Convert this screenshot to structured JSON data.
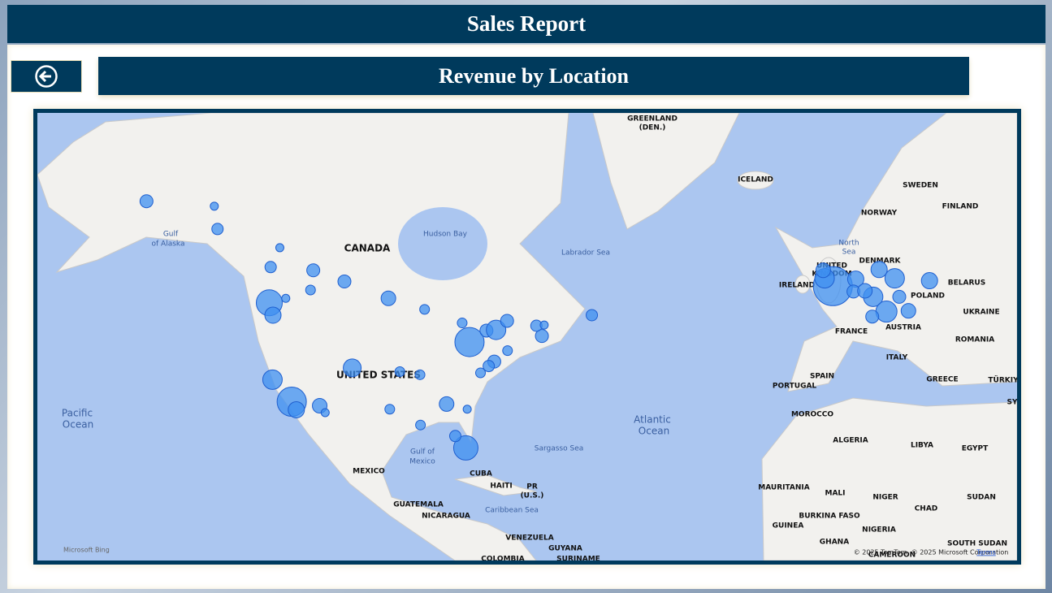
{
  "header": {
    "title": "Sales Report"
  },
  "visual": {
    "title": "Revenue by Location"
  },
  "map": {
    "labels": [
      "GREENLAND",
      "(DEN.)",
      "ICELAND",
      "SWEDEN",
      "FINLAND",
      "NORWAY",
      "North",
      "Sea",
      "DENMARK",
      "UNITED",
      "KINGDOM",
      "IRELAND",
      "BELARUS",
      "POLAND",
      "UKRAINE",
      "FRANCE",
      "AUSTRIA",
      "ROMANIA",
      "ITALY",
      "SPAIN",
      "PORTUGAL",
      "GREECE",
      "TÜRKIY",
      "SY",
      "MOROCCO",
      "ALGERIA",
      "LIBYA",
      "EGYPT",
      "MAURITANIA",
      "MALI",
      "NIGER",
      "SUDAN",
      "CHAD",
      "BURKINA FASO",
      "GUINEA",
      "NIGERIA",
      "GHANA",
      "SOUTH SUDAN",
      "CAMEROON",
      "CANADA",
      "Hudson Bay",
      "Labrador Sea",
      "Gulf",
      "of Alaska",
      "UNITED STATES",
      "Pacific",
      "Ocean",
      "Atlantic",
      "Ocean",
      "Sargasso Sea",
      "Gulf of",
      "Mexico",
      "MEXICO",
      "CUBA",
      "HAITI",
      "PR",
      "(U.S.)",
      "GUATEMALA",
      "NICARAGUA",
      "Caribbean Sea",
      "VENEZUELA",
      "GUYANA",
      "COLOMBIA",
      "SURINAME"
    ],
    "bubbles": [
      {
        "lon": -149.9,
        "lat": 61.2,
        "revenue": 64
      },
      {
        "lon": -135.1,
        "lat": 60.7,
        "revenue": 25
      },
      {
        "lon": -134.4,
        "lat": 58.3,
        "revenue": 49
      },
      {
        "lon": -122.8,
        "lat": 53.9,
        "revenue": 49
      },
      {
        "lon": -120.8,
        "lat": 56.2,
        "revenue": 25
      },
      {
        "lon": -113.5,
        "lat": 53.5,
        "revenue": 64
      },
      {
        "lon": -123.1,
        "lat": 49.3,
        "revenue": 256
      },
      {
        "lon": -122.3,
        "lat": 47.6,
        "revenue": 100
      },
      {
        "lon": -114.1,
        "lat": 51.0,
        "revenue": 36
      },
      {
        "lon": -119.5,
        "lat": 49.9,
        "revenue": 25
      },
      {
        "lon": -106.7,
        "lat": 52.1,
        "revenue": 64
      },
      {
        "lon": -97.1,
        "lat": 49.9,
        "revenue": 81
      },
      {
        "lon": -89.2,
        "lat": 48.4,
        "revenue": 36
      },
      {
        "lon": -79.4,
        "lat": 43.7,
        "revenue": 324
      },
      {
        "lon": -75.7,
        "lat": 45.4,
        "revenue": 64
      },
      {
        "lon": -73.6,
        "lat": 45.5,
        "revenue": 144
      },
      {
        "lon": -71.2,
        "lat": 46.8,
        "revenue": 64
      },
      {
        "lon": -81.0,
        "lat": 46.5,
        "revenue": 36
      },
      {
        "lon": -63.6,
        "lat": 44.6,
        "revenue": 64
      },
      {
        "lon": -64.8,
        "lat": 46.1,
        "revenue": 49
      },
      {
        "lon": -52.7,
        "lat": 47.6,
        "revenue": 49
      },
      {
        "lon": -63.1,
        "lat": 46.2,
        "revenue": 25
      },
      {
        "lon": -74.0,
        "lat": 40.7,
        "revenue": 64
      },
      {
        "lon": -71.1,
        "lat": 42.4,
        "revenue": 36
      },
      {
        "lon": -75.2,
        "lat": 40.0,
        "revenue": 49
      },
      {
        "lon": -77.0,
        "lat": 38.9,
        "revenue": 36
      },
      {
        "lon": -105.0,
        "lat": 39.7,
        "revenue": 121
      },
      {
        "lon": -122.4,
        "lat": 37.8,
        "revenue": 144
      },
      {
        "lon": -118.2,
        "lat": 34.1,
        "revenue": 324
      },
      {
        "lon": -117.2,
        "lat": 32.7,
        "revenue": 100
      },
      {
        "lon": -112.1,
        "lat": 33.4,
        "revenue": 81
      },
      {
        "lon": -110.9,
        "lat": 32.2,
        "revenue": 25
      },
      {
        "lon": -94.6,
        "lat": 39.1,
        "revenue": 36
      },
      {
        "lon": -90.2,
        "lat": 38.6,
        "revenue": 36
      },
      {
        "lon": -84.4,
        "lat": 33.7,
        "revenue": 81
      },
      {
        "lon": -79.9,
        "lat": 32.8,
        "revenue": 25
      },
      {
        "lon": -96.8,
        "lat": 32.8,
        "revenue": 36
      },
      {
        "lon": -90.1,
        "lat": 30.0,
        "revenue": 36
      },
      {
        "lon": -80.2,
        "lat": 25.8,
        "revenue": 225
      },
      {
        "lon": -82.5,
        "lat": 28.0,
        "revenue": 49
      },
      {
        "lon": -0.1,
        "lat": 51.5,
        "revenue": 576
      },
      {
        "lon": 4.9,
        "lat": 52.4,
        "revenue": 100
      },
      {
        "lon": 4.4,
        "lat": 50.8,
        "revenue": 64
      },
      {
        "lon": 13.4,
        "lat": 52.5,
        "revenue": 144
      },
      {
        "lon": 10.0,
        "lat": 53.6,
        "revenue": 100
      },
      {
        "lon": 8.7,
        "lat": 50.1,
        "revenue": 144
      },
      {
        "lon": 11.6,
        "lat": 48.1,
        "revenue": 169
      },
      {
        "lon": 8.5,
        "lat": 47.4,
        "revenue": 64
      },
      {
        "lon": 16.4,
        "lat": 48.2,
        "revenue": 81
      },
      {
        "lon": 21.0,
        "lat": 52.2,
        "revenue": 100
      },
      {
        "lon": 14.4,
        "lat": 50.1,
        "revenue": 64
      },
      {
        "lon": 6.9,
        "lat": 50.9,
        "revenue": 81
      },
      {
        "lon": -1.9,
        "lat": 52.5,
        "revenue": 144
      },
      {
        "lon": -2.2,
        "lat": 53.5,
        "revenue": 81
      }
    ],
    "logo": "Microsoft Bing",
    "attribution": "© 2025 TomTom, © 2025 Microsoft Corporation",
    "terms": "Terms"
  }
}
